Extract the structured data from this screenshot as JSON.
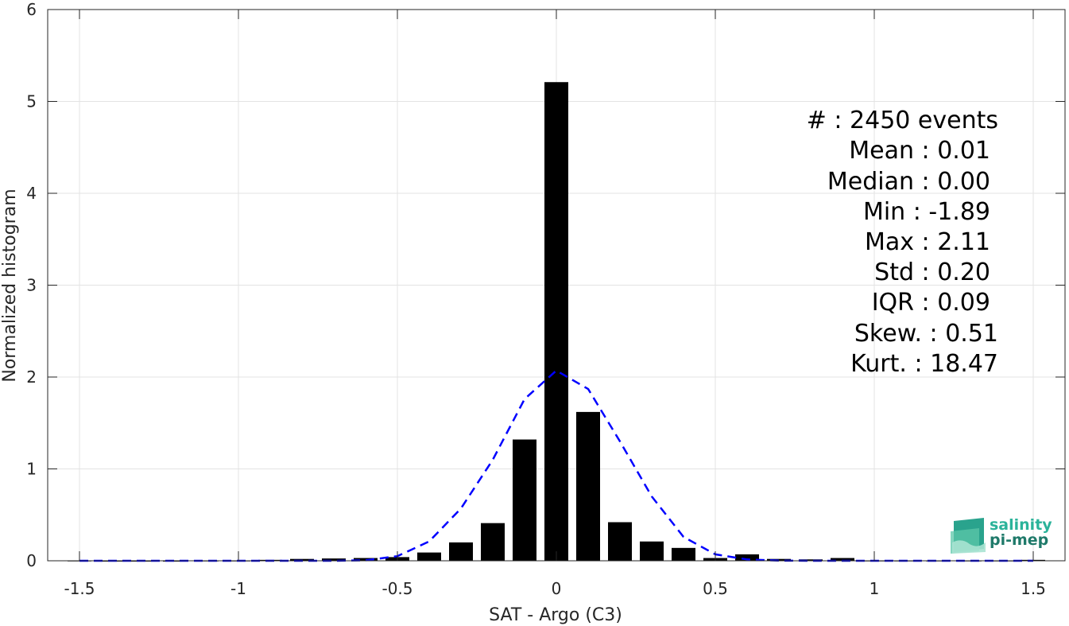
{
  "chart_data": {
    "type": "bar",
    "xlabel": "SAT - Argo (C3)",
    "ylabel": "Normalized histogram",
    "xlim": [
      -1.6,
      1.6
    ],
    "ylim": [
      0,
      6
    ],
    "xticks": [
      -1.5,
      -1,
      -0.5,
      0,
      0.5,
      1,
      1.5
    ],
    "xtick_labels": [
      "-1.5",
      "-1",
      "-0.5",
      "0",
      "0.5",
      "1",
      "1.5"
    ],
    "yticks": [
      0,
      1,
      2,
      3,
      4,
      5,
      6
    ],
    "ytick_labels": [
      "0",
      "1",
      "2",
      "3",
      "4",
      "5",
      "6"
    ],
    "grid": true,
    "bar_width": 0.075,
    "bar_color": "#000000",
    "fit_color": "#0000ff",
    "bars": {
      "x": [
        -1.5,
        -1.4,
        -1.3,
        -1.2,
        -1.1,
        -1.0,
        -0.9,
        -0.8,
        -0.7,
        -0.6,
        -0.5,
        -0.4,
        -0.3,
        -0.2,
        -0.1,
        0.0,
        0.1,
        0.2,
        0.3,
        0.4,
        0.5,
        0.6,
        0.7,
        0.8,
        0.9,
        1.0,
        1.1,
        1.2,
        1.3,
        1.4,
        1.5
      ],
      "values": [
        0.004,
        0.002,
        0.002,
        0.002,
        0.004,
        0.004,
        0.01,
        0.02,
        0.025,
        0.03,
        0.04,
        0.09,
        0.2,
        0.41,
        1.32,
        5.21,
        1.62,
        0.42,
        0.21,
        0.14,
        0.03,
        0.07,
        0.02,
        0.015,
        0.03,
        0.004,
        0.004,
        0.004,
        0.004,
        0.004,
        0.01
      ]
    },
    "fit": {
      "x": [
        -1.5,
        -1.4,
        -1.3,
        -1.2,
        -1.1,
        -1.0,
        -0.9,
        -0.8,
        -0.7,
        -0.6,
        -0.5,
        -0.4,
        -0.3,
        -0.2,
        -0.1,
        0.0,
        0.1,
        0.2,
        0.3,
        0.4,
        0.5,
        0.6,
        0.7,
        0.8,
        0.9,
        1.0,
        1.1,
        1.2,
        1.3,
        1.4,
        1.5
      ],
      "values": [
        0,
        0,
        0,
        0,
        0,
        0,
        0,
        0,
        0,
        0.005,
        0.05,
        0.21,
        0.57,
        1.1,
        1.76,
        2.07,
        1.87,
        1.3,
        0.7,
        0.26,
        0.07,
        0.015,
        0.002,
        0,
        0,
        0,
        0,
        0,
        0,
        0,
        0
      ]
    },
    "annotations": [
      "#  : 2450 events",
      "Mean : 0.01",
      "Median : 0.00",
      "Min : -1.89",
      "Max : 2.11",
      "Std : 0.20",
      "IQR : 0.09",
      "Skew. : 0.51",
      "Kurt. : 18.47"
    ]
  },
  "logo": {
    "line1": "salinity",
    "line2": "pi-mep",
    "line1_color": "#2bb39a",
    "line2_color": "#1f7a6a",
    "mark_color": "#24a08a"
  }
}
